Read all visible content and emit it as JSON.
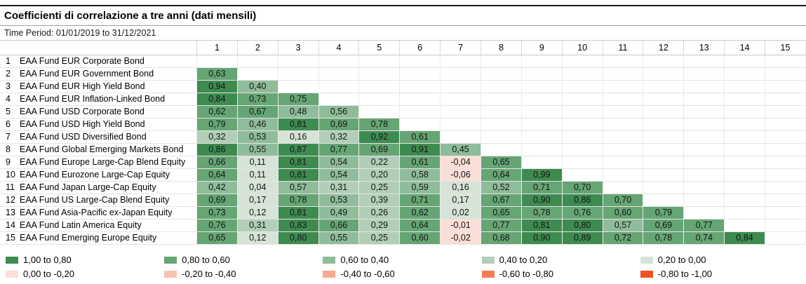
{
  "title": "Coefficienti di correlazione a tre anni (dati mensili)",
  "time_period": "Time Period: 01/01/2019 to 31/12/2021",
  "chart_data": {
    "type": "heatmap",
    "title": "Coefficienti di correlazione a tre anni (dati mensili)",
    "subtitle": "Time Period: 01/01/2019 to 31/12/2021",
    "decimal_separator": ",",
    "legend_position": "bottom",
    "columns": [
      "1",
      "2",
      "3",
      "4",
      "5",
      "6",
      "7",
      "8",
      "9",
      "10",
      "11",
      "12",
      "13",
      "14",
      "15"
    ],
    "rows": [
      {
        "num": "1",
        "name": "EAA Fund EUR Corporate Bond",
        "values": []
      },
      {
        "num": "2",
        "name": "EAA Fund EUR Government Bond",
        "values": [
          "0,63"
        ]
      },
      {
        "num": "3",
        "name": "EAA Fund EUR High Yield Bond",
        "values": [
          "0,94",
          "0,40"
        ]
      },
      {
        "num": "4",
        "name": "EAA Fund EUR Inflation-Linked Bond",
        "values": [
          "0,84",
          "0,73",
          "0,75"
        ]
      },
      {
        "num": "5",
        "name": "EAA Fund USD Corporate Bond",
        "values": [
          "0,62",
          "0,67",
          "0,48",
          "0,56"
        ]
      },
      {
        "num": "6",
        "name": "EAA Fund USD High Yield Bond",
        "values": [
          "0,79",
          "0,46",
          "0,81",
          "0,69",
          "0,78"
        ]
      },
      {
        "num": "7",
        "name": "EAA Fund USD Diversified Bond",
        "values": [
          "0,32",
          "0,53",
          "0,16",
          "0,32",
          "0,92",
          "0,61"
        ]
      },
      {
        "num": "8",
        "name": "EAA Fund Global Emerging Markets Bond",
        "values": [
          "0,86",
          "0,55",
          "0,87",
          "0,77",
          "0,69",
          "0,91",
          "0,45"
        ]
      },
      {
        "num": "9",
        "name": "EAA Fund Europe Large-Cap Blend Equity",
        "values": [
          "0,66",
          "0,11",
          "0,81",
          "0,54",
          "0,22",
          "0,61",
          "-0,04",
          "0,65"
        ]
      },
      {
        "num": "10",
        "name": "EAA Fund Eurozone Large-Cap Equity",
        "values": [
          "0,64",
          "0,11",
          "0,81",
          "0,54",
          "0,20",
          "0,58",
          "-0,06",
          "0,64",
          "0,99"
        ]
      },
      {
        "num": "11",
        "name": "EAA Fund Japan Large-Cap Equity",
        "values": [
          "0,42",
          "0,04",
          "0,57",
          "0,31",
          "0,25",
          "0,59",
          "0,16",
          "0,52",
          "0,71",
          "0,70"
        ]
      },
      {
        "num": "12",
        "name": "EAA Fund US Large-Cap Blend Equity",
        "values": [
          "0,69",
          "0,17",
          "0,78",
          "0,53",
          "0,39",
          "0,71",
          "0,17",
          "0,67",
          "0,90",
          "0,86",
          "0,70"
        ]
      },
      {
        "num": "13",
        "name": "EAA Fund Asia-Pacific ex-Japan Equity",
        "values": [
          "0,73",
          "0,12",
          "0,81",
          "0,49",
          "0,26",
          "0,62",
          "0,02",
          "0,65",
          "0,78",
          "0,76",
          "0,60",
          "0,79"
        ]
      },
      {
        "num": "14",
        "name": "EAA Fund Latin America Equity",
        "values": [
          "0,76",
          "0,31",
          "0,83",
          "0,66",
          "0,29",
          "0,64",
          "-0,01",
          "0,77",
          "0,81",
          "0,80",
          "0,57",
          "0,69",
          "0,77"
        ]
      },
      {
        "num": "15",
        "name": "EAA Fund Emerging Europe Equity",
        "values": [
          "0,65",
          "0,12",
          "0,80",
          "0,55",
          "0,25",
          "0,60",
          "-0,02",
          "0,68",
          "0,90",
          "0,89",
          "0,72",
          "0,78",
          "0,74",
          "0,84"
        ]
      }
    ],
    "legend": [
      {
        "label": "1,00 to 0,80",
        "color": "#3e8b50",
        "min": 0.8
      },
      {
        "label": "0,80 to 0,60",
        "color": "#66a574",
        "min": 0.6
      },
      {
        "label": "0,60 to 0,40",
        "color": "#8fbc99",
        "min": 0.4
      },
      {
        "label": "0,40 to 0,20",
        "color": "#b2ceb7",
        "min": 0.2
      },
      {
        "label": "0,20 to 0,00",
        "color": "#d6e4d8",
        "min": 0.0
      },
      {
        "label": "0,00 to -0,20",
        "color": "#fbdfd7",
        "min": -0.2
      },
      {
        "label": "-0,20 to -0,40",
        "color": "#fac1b1",
        "min": -0.4
      },
      {
        "label": "-0,40 to -0,60",
        "color": "#f9a98d",
        "min": -0.6
      },
      {
        "label": "-0,60 to -0,80",
        "color": "#f57c52",
        "min": -0.8
      },
      {
        "label": "-0,80 to -1,00",
        "color": "#f05123",
        "min": -1.0
      }
    ]
  }
}
